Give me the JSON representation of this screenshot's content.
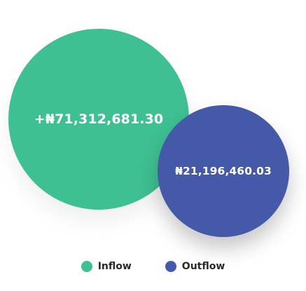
{
  "colors": {
    "inflow": "#3ec092",
    "outflow": "#4559a9"
  },
  "chart_data": {
    "type": "bubble",
    "title": "",
    "series": [
      {
        "name": "Inflow",
        "label": "+₦71,312,681.30",
        "value": 71312681.3,
        "color": "#3ec092"
      },
      {
        "name": "Outflow",
        "label": "₦21,196,460.03",
        "value": 21196460.03,
        "color": "#4559a9"
      }
    ],
    "legend": {
      "position": "bottom",
      "entries": [
        "Inflow",
        "Outflow"
      ]
    }
  }
}
